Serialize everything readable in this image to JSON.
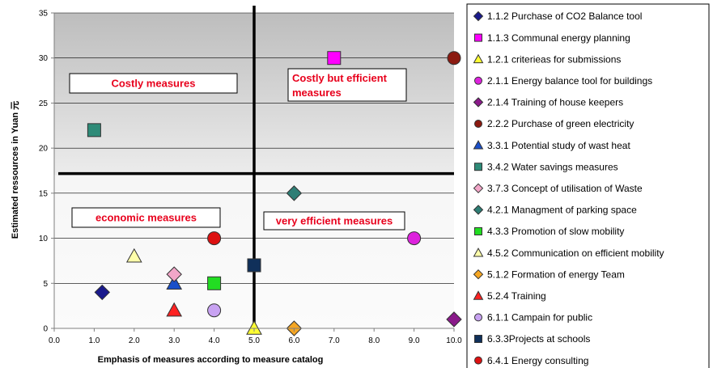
{
  "chart_data": {
    "type": "scatter",
    "title": "",
    "xlabel": "Emphasis of measures according to measure catalog",
    "ylabel": "Estimated ressources in Yuan 元",
    "xlim": [
      0,
      10
    ],
    "ylim": [
      0,
      35
    ],
    "x_ticks": [
      "0.0",
      "1.0",
      "2.0",
      "3.0",
      "4.0",
      "5.0",
      "6.0",
      "7.0",
      "8.0",
      "9.0",
      "10.0"
    ],
    "y_ticks": [
      "0",
      "5",
      "10",
      "15",
      "20",
      "25",
      "30",
      "35"
    ],
    "grid": "horizontal",
    "legend_position": "right",
    "divider_lines": {
      "x": 5,
      "y": 17
    },
    "quadrant_labels": [
      {
        "text": "Costly measures",
        "quadrant": "top-left"
      },
      {
        "text": "Costly but efficient measures",
        "quadrant": "top-right"
      },
      {
        "text": "economic measures",
        "quadrant": "bottom-left"
      },
      {
        "text": "very efficient measures",
        "quadrant": "bottom-right"
      }
    ],
    "series": [
      {
        "name": "1.1.2  Purchase of CO2 Balance tool",
        "marker": "diamond",
        "color": "#1a1a8c",
        "points": [
          [
            1.2,
            4
          ]
        ]
      },
      {
        "name": "1.1.3 Communal energy planning",
        "marker": "square",
        "color": "#ff00ff",
        "points": [
          [
            7.0,
            30
          ]
        ]
      },
      {
        "name": "1.2.1 criterieas for submissions",
        "marker": "triangle",
        "color": "#ffff33",
        "points": [
          [
            5.0,
            0
          ]
        ]
      },
      {
        "name": "2.1.1 Energy balance tool for buildings",
        "marker": "circle",
        "color": "#dd22dd",
        "points": [
          [
            9.0,
            10
          ]
        ]
      },
      {
        "name": "2.1.4 Training of house keepers",
        "marker": "diamond",
        "color": "#8a1a8a",
        "points": [
          [
            10.0,
            1
          ]
        ]
      },
      {
        "name": "2.2.2 Purchase of green electricity",
        "marker": "circle",
        "color": "#8b1a10",
        "points": [
          [
            10.0,
            30
          ]
        ]
      },
      {
        "name": "3.3.1 Potential study of wast heat",
        "marker": "triangle",
        "color": "#1a4fc9",
        "points": [
          [
            3.0,
            5
          ]
        ]
      },
      {
        "name": "3.4.2 Water savings measures",
        "marker": "square",
        "color": "#2e8b78",
        "points": [
          [
            1.0,
            22
          ]
        ]
      },
      {
        "name": "3.7.3 Concept of utilisation of  Waste",
        "marker": "diamond",
        "color": "#f2a6c8",
        "points": [
          [
            3.0,
            6
          ]
        ]
      },
      {
        "name": "4.2.1 Managment of parking space",
        "marker": "diamond",
        "color": "#2e7e75",
        "points": [
          [
            6.0,
            15
          ]
        ]
      },
      {
        "name": "4.3.3 Promotion of slow mobility",
        "marker": "square",
        "color": "#22dd22",
        "points": [
          [
            4.0,
            5
          ]
        ]
      },
      {
        "name": "4.5.2 Communication on efficient mobility",
        "marker": "triangle",
        "color": "#ffffaa",
        "points": [
          [
            2.0,
            8
          ]
        ]
      },
      {
        "name": "5.1.2 Formation of energy Team",
        "marker": "diamond",
        "color": "#f5a623",
        "points": [
          [
            6.0,
            0
          ]
        ]
      },
      {
        "name": "5.2.4 Training",
        "marker": "triangle",
        "color": "#ff2222",
        "points": [
          [
            3.0,
            2
          ]
        ]
      },
      {
        "name": "6.1.1 Campain for public",
        "marker": "circle",
        "color": "#c8a2f2",
        "points": [
          [
            4.0,
            2
          ]
        ]
      },
      {
        "name": "6.3.3Projects at schools",
        "marker": "square",
        "color": "#10305a",
        "points": [
          [
            5.0,
            7
          ]
        ]
      },
      {
        "name": "6.4.1 Energy consulting",
        "marker": "circle",
        "color": "#dd1111",
        "points": [
          [
            4.0,
            10
          ]
        ]
      }
    ]
  }
}
